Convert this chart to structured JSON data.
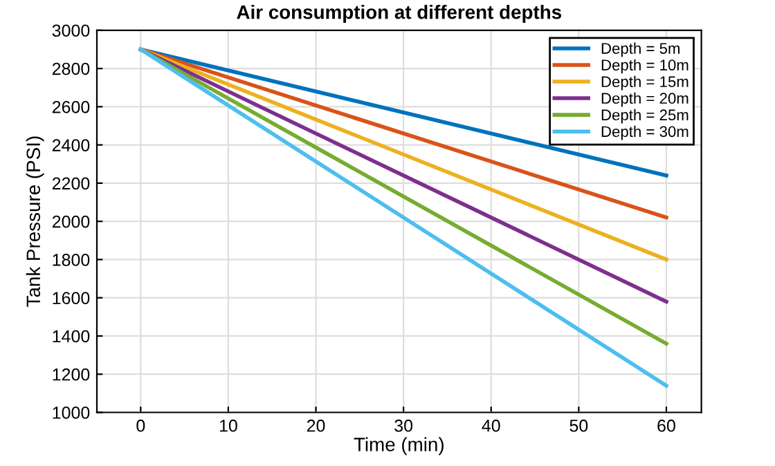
{
  "chart_data": {
    "type": "line",
    "title": "Air consumption at different depths",
    "xlabel": "Time (min)",
    "ylabel": "Tank Pressure (PSI)",
    "x": [
      0,
      60
    ],
    "series": [
      {
        "name": "Depth = 5m",
        "color": "#0072bd",
        "values": [
          2900,
          2240
        ]
      },
      {
        "name": "Depth = 10m",
        "color": "#d95319",
        "values": [
          2900,
          2020
        ]
      },
      {
        "name": "Depth = 15m",
        "color": "#edb120",
        "values": [
          2900,
          1800
        ]
      },
      {
        "name": "Depth = 20m",
        "color": "#7e2f8e",
        "values": [
          2900,
          1580
        ]
      },
      {
        "name": "Depth = 25m",
        "color": "#77ac30",
        "values": [
          2900,
          1360
        ]
      },
      {
        "name": "Depth = 30m",
        "color": "#4dbeee",
        "values": [
          2900,
          1140
        ]
      }
    ],
    "xlim": [
      -5,
      64
    ],
    "xticks": [
      0,
      10,
      20,
      30,
      40,
      50,
      60
    ],
    "ylim": [
      1000,
      3000
    ],
    "yticks": [
      1000,
      1200,
      1400,
      1600,
      1800,
      2000,
      2200,
      2400,
      2600,
      2800,
      3000
    ],
    "grid": true,
    "legend": "top right"
  }
}
